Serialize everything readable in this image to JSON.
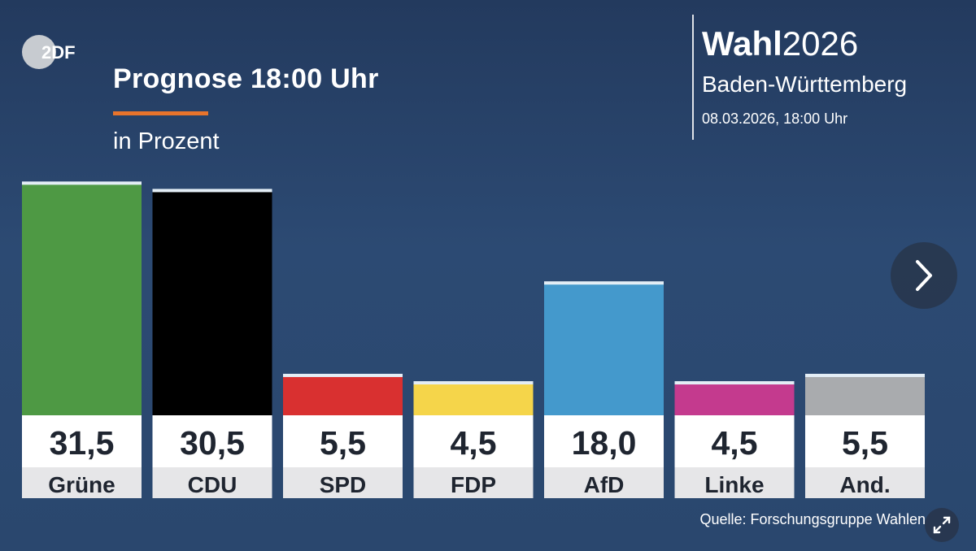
{
  "header": {
    "logo_text": "2DF",
    "title": "Prognose 18:00 Uhr",
    "subtitle": "in Prozent",
    "accent_color": "#e8742c"
  },
  "brand": {
    "name_bold": "Wahl",
    "year": "2026",
    "region": "Baden-Württemberg",
    "datetime": "08.03.2026, 18:00 Uhr"
  },
  "chart_data": {
    "type": "bar",
    "title": "Prognose 18:00 Uhr",
    "ylabel": "in Prozent",
    "categories": [
      "Grüne",
      "CDU",
      "SPD",
      "FDP",
      "AfD",
      "Linke",
      "And."
    ],
    "values": [
      31.5,
      30.5,
      5.5,
      4.5,
      18.0,
      4.5,
      5.5
    ],
    "value_labels": [
      "31,5",
      "30,5",
      "5,5",
      "4,5",
      "18,0",
      "4,5",
      "5,5"
    ],
    "colors": [
      "#4e9944",
      "#000000",
      "#d93030",
      "#f5d54a",
      "#4499cc",
      "#c43a8e",
      "#a9abae"
    ]
  },
  "controls": {
    "next_icon": "chevron-right-icon",
    "expand_icon": "expand-icon"
  },
  "source": "Quelle: Forschungsgruppe Wahlen"
}
